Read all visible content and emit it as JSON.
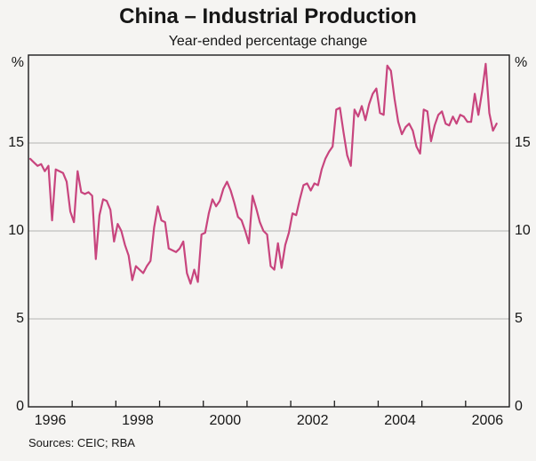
{
  "header": {
    "title": "China – Industrial Production",
    "subtitle": "Year-ended percentage change"
  },
  "axes": {
    "y_unit_left": "%",
    "y_unit_right": "%",
    "y_tick_labels": [
      0,
      5,
      10,
      15
    ],
    "x_tick_labels": [
      "1996",
      "1998",
      "2000",
      "2002",
      "2004",
      "2006"
    ]
  },
  "footer": {
    "sources": "Sources: CEIC; RBA"
  },
  "colors": {
    "line": "#c8457e",
    "grid": "#b3b3b1",
    "frame": "#1c1c1c",
    "background": "#f5f4f2",
    "text": "#161616"
  },
  "chart_data": {
    "type": "line",
    "title": "China – Industrial Production",
    "subtitle": "Year-ended percentage change",
    "xlabel": "",
    "ylabel": "%",
    "grid": "horizontal",
    "legend_position": "none",
    "x_start": "1996-01",
    "frequency": "monthly",
    "x_range_years": [
      1996,
      2007
    ],
    "x_tick_years": [
      1996,
      1998,
      2000,
      2002,
      2004,
      2006
    ],
    "ylim": [
      0,
      20
    ],
    "y_gridlines": [
      5,
      10,
      15
    ],
    "series": [
      {
        "name": "Industrial production year-ended percentage change",
        "color": "#c8457e",
        "values": [
          14.1,
          13.9,
          13.7,
          13.8,
          13.4,
          13.7,
          10.6,
          13.5,
          13.4,
          13.3,
          12.8,
          11.1,
          10.5,
          13.4,
          12.2,
          12.1,
          12.2,
          12.0,
          8.4,
          10.9,
          11.8,
          11.7,
          11.2,
          9.4,
          10.4,
          10.0,
          9.2,
          8.6,
          7.2,
          8.0,
          7.8,
          7.6,
          8.0,
          8.3,
          10.2,
          11.4,
          10.6,
          10.5,
          9.0,
          8.9,
          8.8,
          9.0,
          9.4,
          7.6,
          7.0,
          7.8,
          7.1,
          9.8,
          9.9,
          11.0,
          11.8,
          11.4,
          11.7,
          12.4,
          12.8,
          12.3,
          11.6,
          10.8,
          10.6,
          10.0,
          9.3,
          12.0,
          11.3,
          10.5,
          10.0,
          9.8,
          8.0,
          7.8,
          9.3,
          7.9,
          9.2,
          9.9,
          11.0,
          10.9,
          11.8,
          12.6,
          12.7,
          12.3,
          12.7,
          12.6,
          13.5,
          14.1,
          14.5,
          14.8,
          16.9,
          17.0,
          15.6,
          14.3,
          13.7,
          16.9,
          16.5,
          17.1,
          16.3,
          17.2,
          17.8,
          18.1,
          16.7,
          16.6,
          19.4,
          19.1,
          17.5,
          16.2,
          15.5,
          15.9,
          16.1,
          15.7,
          14.8,
          14.4,
          16.9,
          16.8,
          15.1,
          16.0,
          16.6,
          16.8,
          16.1,
          16.0,
          16.5,
          16.1,
          16.6,
          16.5,
          16.2,
          16.2,
          17.8,
          16.6,
          17.9,
          19.5,
          16.7,
          15.7,
          16.1
        ]
      }
    ]
  }
}
